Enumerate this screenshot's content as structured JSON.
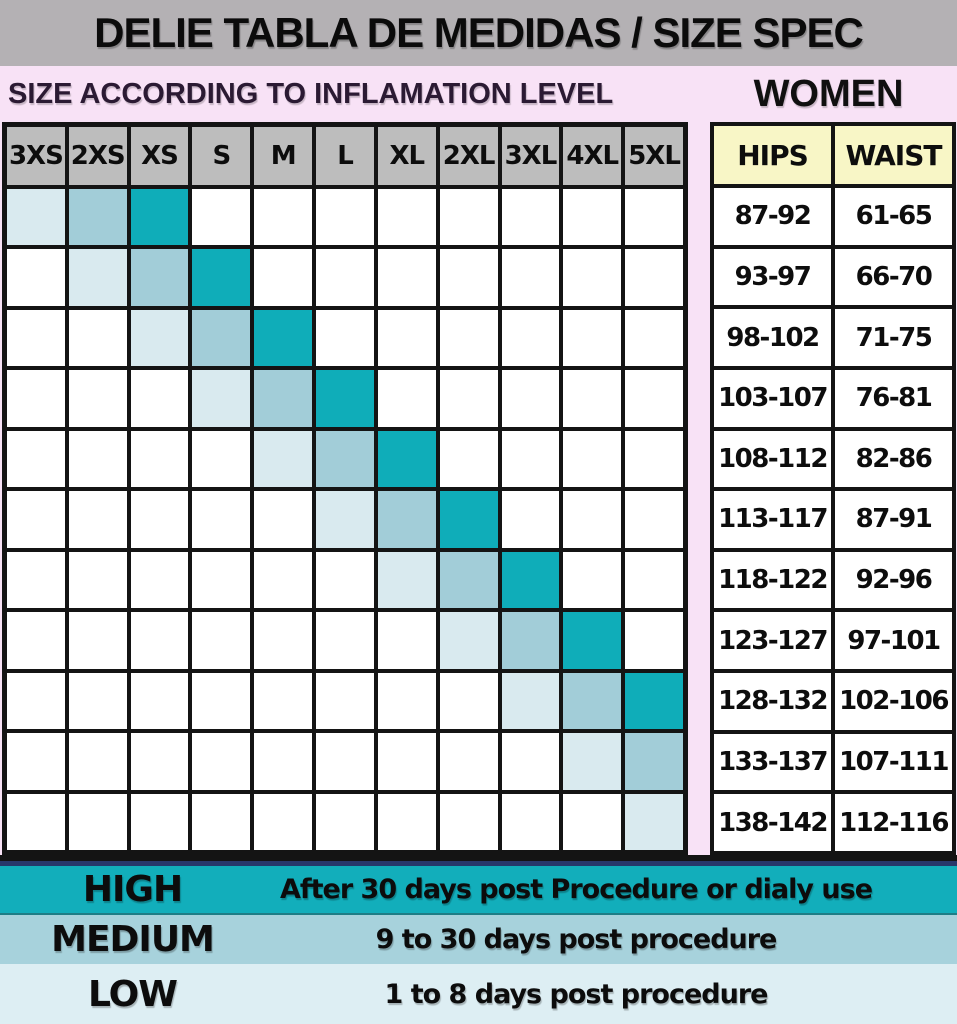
{
  "title": "DELIE TABLA DE MEDIDAS / SIZE SPEC",
  "subtitle": "SIZE ACCORDING TO INFLAMATION LEVEL",
  "women_label": "WOMEN",
  "colors": {
    "high": "#0fadb9",
    "medium": "#a2cdd8",
    "low": "#d9eaef",
    "legend_high_bg": "#12aebb",
    "legend_medium_bg": "#a7d2dc",
    "legend_low_bg": "#ddeef3",
    "pink_background": "#f8e2f6",
    "title_band": "#b4b1b4",
    "grid_header": "#bdbdbd",
    "measure_header": "#f8f6c6",
    "border": "#141414",
    "navy_line": "#27386b"
  },
  "size_columns": [
    "3XS",
    "2XS",
    "XS",
    "S",
    "M",
    "L",
    "XL",
    "2XL",
    "3XL",
    "4XL",
    "5XL"
  ],
  "grid_rows": [
    {
      "low_col": 0,
      "medium_col": 1,
      "high_col": 2
    },
    {
      "low_col": 1,
      "medium_col": 2,
      "high_col": 3
    },
    {
      "low_col": 2,
      "medium_col": 3,
      "high_col": 4
    },
    {
      "low_col": 3,
      "medium_col": 4,
      "high_col": 5
    },
    {
      "low_col": 4,
      "medium_col": 5,
      "high_col": 6
    },
    {
      "low_col": 5,
      "medium_col": 6,
      "high_col": 7
    },
    {
      "low_col": 6,
      "medium_col": 7,
      "high_col": 8
    },
    {
      "low_col": 7,
      "medium_col": 8,
      "high_col": 9
    },
    {
      "low_col": 8,
      "medium_col": 9,
      "high_col": 10
    },
    {
      "low_col": 9,
      "medium_col": 10,
      "high_col": null
    },
    {
      "low_col": 10,
      "medium_col": null,
      "high_col": null
    }
  ],
  "measurements": {
    "headers": [
      "HIPS",
      "WAIST"
    ],
    "rows": [
      [
        "87-92",
        "61-65"
      ],
      [
        "93-97",
        "66-70"
      ],
      [
        "98-102",
        "71-75"
      ],
      [
        "103-107",
        "76-81"
      ],
      [
        "108-112",
        "82-86"
      ],
      [
        "113-117",
        "87-91"
      ],
      [
        "118-122",
        "92-96"
      ],
      [
        "123-127",
        "97-101"
      ],
      [
        "128-132",
        "102-106"
      ],
      [
        "133-137",
        "107-111"
      ],
      [
        "138-142",
        "112-116"
      ]
    ]
  },
  "legend": [
    {
      "label": "HIGH",
      "description": "After 30 days post Procedure or dialy use",
      "level": "high"
    },
    {
      "label": "MEDIUM",
      "description": "9 to 30 days post procedure",
      "level": "medium"
    },
    {
      "label": "LOW",
      "description": "1 to 8 days post procedure",
      "level": "low"
    }
  ]
}
